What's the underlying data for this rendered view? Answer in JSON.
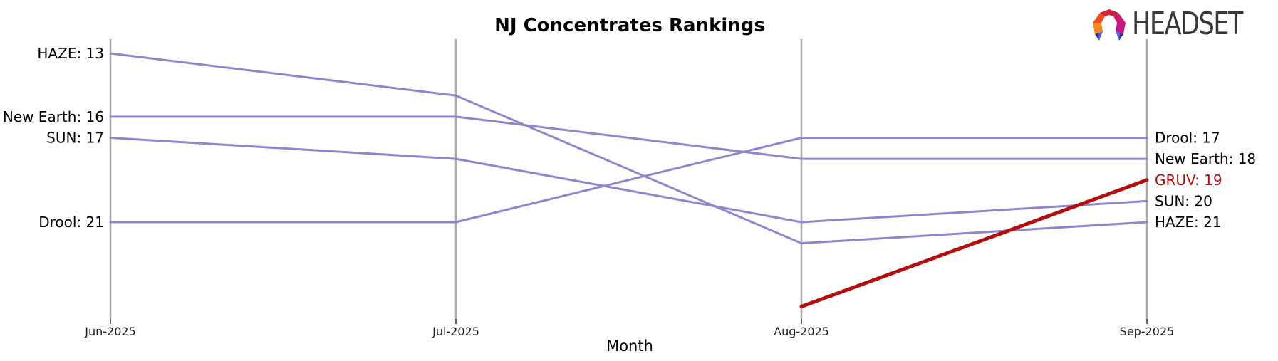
{
  "logo": {
    "text": "HEADSET"
  },
  "colors": {
    "line_purple": "#9185d0",
    "highlight_red": "#b50d0d",
    "axis_gray": "#a9a9a9",
    "tick_black": "#262626",
    "label_black": "#000000"
  },
  "chart_data": {
    "type": "line",
    "subtype": "bump-ranking",
    "title": "NJ Concentrates Rankings",
    "xlabel": "Month",
    "x": [
      "Jun-2025",
      "Jul-2025",
      "Aug-2025",
      "Sep-2025"
    ],
    "rank_domain": [
      13,
      25
    ],
    "grid": false,
    "legend": "none",
    "series": [
      {
        "name": "HAZE",
        "ranks": [
          13,
          15,
          22,
          21
        ],
        "color": "#9185d0",
        "highlight": false
      },
      {
        "name": "New Earth",
        "ranks": [
          16,
          16,
          18,
          18
        ],
        "color": "#9185d0",
        "highlight": false
      },
      {
        "name": "SUN",
        "ranks": [
          17,
          18,
          21,
          20
        ],
        "color": "#9185d0",
        "highlight": false
      },
      {
        "name": "Drool",
        "ranks": [
          21,
          21,
          17,
          17
        ],
        "color": "#9185d0",
        "highlight": false
      },
      {
        "name": "GRUV",
        "ranks": [
          null,
          null,
          25,
          19
        ],
        "color": "#b50d0d",
        "highlight": true
      }
    ],
    "left_labels": [
      {
        "text": "HAZE: 13",
        "rank": 13,
        "color": "#000000"
      },
      {
        "text": "New Earth: 16",
        "rank": 16,
        "color": "#000000"
      },
      {
        "text": "SUN: 17",
        "rank": 17,
        "color": "#000000"
      },
      {
        "text": "Drool: 21",
        "rank": 21,
        "color": "#000000"
      }
    ],
    "right_labels": [
      {
        "text": "Drool: 17",
        "rank": 17,
        "color": "#000000"
      },
      {
        "text": "New Earth: 18",
        "rank": 18,
        "color": "#000000"
      },
      {
        "text": "GRUV: 19",
        "rank": 19,
        "color": "#b50d0d"
      },
      {
        "text": "SUN: 20",
        "rank": 20,
        "color": "#000000"
      },
      {
        "text": "HAZE: 21",
        "rank": 21,
        "color": "#000000"
      }
    ]
  }
}
